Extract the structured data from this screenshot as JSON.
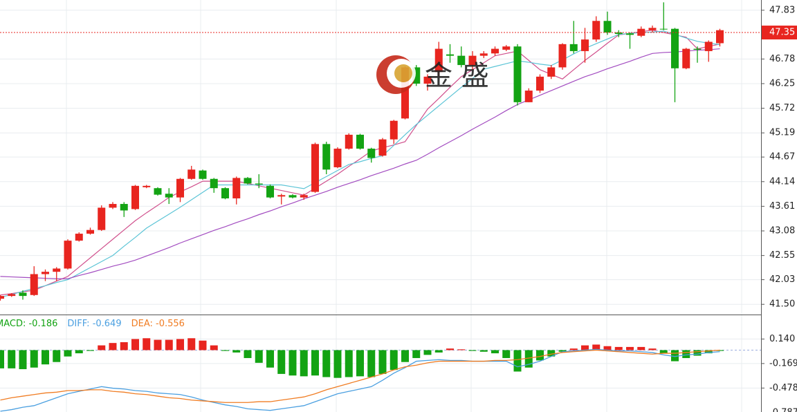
{
  "chart_data": [
    {
      "type": "candlestick",
      "watermark": "金 盛",
      "up_color": "#e8251f",
      "down_color": "#13a313",
      "ylim": [
        41.28,
        48.05
      ],
      "yticks": [
        47.83,
        46.78,
        46.25,
        45.72,
        45.19,
        44.67,
        44.14,
        43.61,
        43.08,
        42.55,
        42.03,
        {
          "value": 41.5,
          "label": "41.50"
        }
      ],
      "grid": true,
      "last_price": 47.35,
      "open": [
        41.62,
        41.68,
        41.75,
        41.7,
        42.15,
        42.2,
        42.27,
        42.87,
        43.02,
        43.1,
        43.58,
        43.66,
        43.55,
        44.02,
        44.0,
        43.88,
        43.8,
        44.2,
        44.38,
        44.2,
        44.0,
        43.78,
        44.22,
        44.1,
        44.05,
        43.82,
        43.85,
        43.8,
        43.92,
        44.95,
        44.45,
        44.85,
        45.15,
        44.85,
        44.7,
        45.05,
        45.5,
        46.6,
        46.25,
        46.5,
        46.88,
        46.85,
        46.65,
        46.85,
        46.9,
        46.98,
        47.05,
        45.85,
        46.1,
        46.4,
        46.6,
        47.1,
        46.95,
        47.2,
        47.6,
        47.35,
        47.33,
        47.28,
        47.4,
        47.43,
        47.43,
        46.58,
        47.0,
        46.95,
        47.12
      ],
      "high": [
        41.7,
        41.74,
        41.8,
        42.32,
        42.25,
        42.3,
        42.9,
        43.05,
        43.15,
        43.63,
        43.7,
        43.7,
        44.07,
        44.07,
        44.02,
        44.0,
        44.22,
        44.48,
        44.4,
        44.22,
        44.02,
        44.25,
        44.24,
        44.3,
        44.08,
        43.88,
        43.87,
        43.88,
        44.98,
        45.0,
        44.88,
        45.18,
        45.17,
        44.87,
        45.08,
        45.47,
        46.62,
        46.65,
        46.45,
        47.15,
        47.1,
        47.05,
        46.95,
        46.95,
        47.05,
        47.08,
        47.1,
        46.15,
        46.45,
        46.65,
        47.12,
        47.6,
        47.45,
        47.7,
        47.8,
        47.4,
        47.35,
        47.48,
        47.5,
        48.0,
        47.45,
        47.02,
        47.05,
        47.18,
        47.43
      ],
      "low": [
        41.58,
        41.66,
        41.6,
        41.68,
        42.0,
        42.0,
        42.25,
        42.85,
        43.0,
        43.08,
        43.55,
        43.38,
        43.53,
        44.0,
        43.84,
        43.66,
        43.7,
        44.18,
        44.18,
        43.9,
        43.76,
        43.65,
        44.08,
        44.0,
        43.78,
        43.65,
        43.78,
        43.75,
        43.9,
        44.3,
        44.43,
        44.83,
        44.83,
        44.55,
        44.68,
        44.95,
        45.48,
        46.2,
        46.1,
        46.4,
        46.7,
        46.6,
        46.55,
        46.8,
        46.85,
        46.95,
        45.78,
        45.85,
        46.05,
        46.35,
        46.55,
        46.9,
        46.7,
        47.15,
        47.3,
        47.25,
        47.0,
        47.25,
        47.35,
        47.4,
        45.85,
        46.56,
        46.7,
        46.72,
        47.05
      ],
      "close": [
        41.68,
        41.72,
        41.68,
        42.15,
        42.2,
        42.27,
        42.87,
        43.02,
        43.1,
        43.58,
        43.66,
        43.52,
        44.05,
        44.05,
        43.86,
        43.8,
        44.2,
        44.4,
        44.2,
        44.0,
        43.78,
        44.22,
        44.1,
        44.08,
        43.8,
        43.85,
        43.8,
        43.85,
        44.95,
        44.4,
        44.85,
        45.15,
        44.85,
        44.65,
        45.05,
        45.45,
        46.6,
        46.25,
        46.4,
        47.0,
        46.85,
        46.65,
        46.85,
        46.9,
        47.0,
        47.05,
        45.85,
        46.1,
        46.4,
        46.6,
        47.1,
        46.95,
        47.2,
        47.6,
        47.35,
        47.32,
        47.3,
        47.43,
        47.45,
        47.42,
        46.58,
        47.0,
        46.98,
        47.15,
        47.4
      ],
      "ma_lines": [
        {
          "color": "#d04f8c",
          "values": [
            41.7,
            41.73,
            41.77,
            41.8,
            41.9,
            42.0,
            42.1,
            42.3,
            42.5,
            42.7,
            42.9,
            43.1,
            43.3,
            43.47,
            43.63,
            43.8,
            43.92,
            44.03,
            44.15,
            44.15,
            44.15,
            44.15,
            44.1,
            44.05,
            44.0,
            43.95,
            43.9,
            43.85,
            44.0,
            44.15,
            44.3,
            44.47,
            44.63,
            44.8,
            44.87,
            44.93,
            45.0,
            45.35,
            45.7,
            45.93,
            46.17,
            46.4,
            46.55,
            46.7,
            46.85,
            46.9,
            46.95,
            46.75,
            46.55,
            46.45,
            46.35,
            46.55,
            46.75,
            46.93,
            47.12,
            47.3,
            47.33,
            47.37,
            47.4,
            47.35,
            47.3,
            47.25,
            47.0,
            47.05,
            47.1
          ]
        },
        {
          "color": "#5bc4d6",
          "values": [
            41.65,
            41.71,
            41.78,
            41.84,
            41.9,
            41.97,
            42.03,
            42.16,
            42.29,
            42.42,
            42.55,
            42.75,
            42.94,
            43.14,
            43.29,
            43.44,
            43.59,
            43.75,
            43.91,
            44.07,
            44.07,
            44.07,
            44.07,
            44.07,
            44.07,
            44.07,
            44.03,
            43.99,
            44.12,
            44.25,
            44.38,
            44.51,
            44.57,
            44.64,
            44.7,
            44.92,
            45.15,
            45.37,
            45.57,
            45.77,
            45.97,
            46.17,
            46.36,
            46.56,
            46.62,
            46.68,
            46.74,
            46.71,
            46.67,
            46.64,
            46.76,
            46.89,
            47.01,
            47.11,
            47.21,
            47.31,
            47.33,
            47.35,
            47.36,
            47.38,
            47.31,
            47.23,
            47.16,
            47.12,
            47.09
          ]
        },
        {
          "color": "#a24bc0",
          "values": [
            42.1,
            42.09,
            42.08,
            42.07,
            42.06,
            42.05,
            42.05,
            42.12,
            42.18,
            42.25,
            42.32,
            42.38,
            42.45,
            42.54,
            42.63,
            42.72,
            42.82,
            42.91,
            43.0,
            43.09,
            43.17,
            43.26,
            43.34,
            43.43,
            43.51,
            43.6,
            43.68,
            43.77,
            43.85,
            43.93,
            44.02,
            44.1,
            44.18,
            44.27,
            44.35,
            44.43,
            44.52,
            44.6,
            44.73,
            44.87,
            45.0,
            45.13,
            45.27,
            45.4,
            45.53,
            45.67,
            45.8,
            45.9,
            46.0,
            46.1,
            46.2,
            46.3,
            46.4,
            46.48,
            46.57,
            46.65,
            46.73,
            46.82,
            46.9,
            46.92,
            46.93,
            46.95,
            46.97,
            46.98,
            47.0
          ]
        }
      ]
    },
    {
      "type": "macd",
      "ylim": [
        -0.78,
        0.44
      ],
      "yticks": [
        {
          "value": 0.14,
          "label": "0.140"
        },
        -0.169,
        -0.478,
        -0.787
      ],
      "histogram": {
        "name": "MACD: -0.186",
        "color": "#13a313",
        "up_color": "#e8251f",
        "down_color": "#13a313",
        "values": [
          -0.23,
          -0.23,
          -0.24,
          -0.22,
          -0.18,
          -0.15,
          -0.08,
          -0.04,
          -0.01,
          0.06,
          0.09,
          0.1,
          0.14,
          0.15,
          0.13,
          0.13,
          0.14,
          0.15,
          0.12,
          0.06,
          -0.01,
          -0.03,
          -0.1,
          -0.16,
          -0.22,
          -0.3,
          -0.32,
          -0.33,
          -0.32,
          -0.34,
          -0.35,
          -0.34,
          -0.33,
          -0.34,
          -0.3,
          -0.25,
          -0.15,
          -0.1,
          -0.06,
          -0.03,
          0.02,
          0.01,
          -0.01,
          -0.02,
          -0.04,
          -0.1,
          -0.27,
          -0.22,
          -0.13,
          -0.08,
          -0.02,
          0.02,
          0.06,
          0.07,
          0.05,
          0.04,
          0.04,
          0.04,
          0.02,
          -0.04,
          -0.14,
          -0.1,
          -0.07,
          -0.04,
          -0.01
        ]
      },
      "series": [
        {
          "name": "DIFF: -0.649",
          "color": "#4a9fe0",
          "values": [
            -0.77,
            -0.75,
            -0.72,
            -0.7,
            -0.65,
            -0.6,
            -0.55,
            -0.52,
            -0.49,
            -0.46,
            -0.48,
            -0.49,
            -0.51,
            -0.52,
            -0.54,
            -0.55,
            -0.56,
            -0.59,
            -0.63,
            -0.66,
            -0.69,
            -0.71,
            -0.74,
            -0.75,
            -0.76,
            -0.74,
            -0.72,
            -0.7,
            -0.65,
            -0.6,
            -0.55,
            -0.52,
            -0.49,
            -0.46,
            -0.38,
            -0.29,
            -0.22,
            -0.14,
            -0.13,
            -0.12,
            -0.13,
            -0.13,
            -0.14,
            -0.14,
            -0.14,
            -0.14,
            -0.21,
            -0.18,
            -0.14,
            -0.08,
            -0.02,
            -0.01,
            0.0,
            0.01,
            0.0,
            -0.01,
            -0.01,
            -0.02,
            -0.03,
            -0.06,
            -0.08,
            -0.06,
            -0.05,
            -0.03,
            -0.02
          ]
        },
        {
          "name": "DEA: -0.556",
          "color": "#f07c22",
          "values": [
            -0.63,
            -0.6,
            -0.58,
            -0.56,
            -0.54,
            -0.53,
            -0.51,
            -0.51,
            -0.5,
            -0.5,
            -0.52,
            -0.53,
            -0.55,
            -0.56,
            -0.58,
            -0.6,
            -0.61,
            -0.63,
            -0.64,
            -0.65,
            -0.66,
            -0.66,
            -0.66,
            -0.65,
            -0.65,
            -0.63,
            -0.61,
            -0.59,
            -0.55,
            -0.5,
            -0.46,
            -0.42,
            -0.38,
            -0.34,
            -0.3,
            -0.25,
            -0.21,
            -0.19,
            -0.16,
            -0.14,
            -0.14,
            -0.14,
            -0.14,
            -0.14,
            -0.13,
            -0.13,
            -0.12,
            -0.1,
            -0.08,
            -0.05,
            -0.03,
            -0.02,
            -0.01,
            0.0,
            -0.01,
            -0.02,
            -0.03,
            -0.04,
            -0.05,
            -0.04,
            -0.04,
            -0.03,
            -0.02,
            -0.01,
            0.0
          ]
        }
      ]
    }
  ]
}
